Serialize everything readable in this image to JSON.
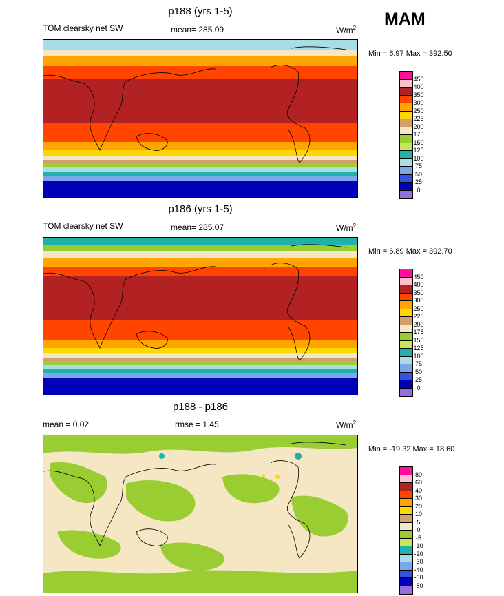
{
  "season": "MAM",
  "panels": [
    {
      "title": "p188 (yrs 1-5)",
      "left_label": "TOM clearsky net SW",
      "center_label": "mean= 285.09",
      "units": "W/m",
      "units_sup": "2",
      "minmax": "Min =   6.97 Max = 392.50",
      "levels": [
        "450",
        "400",
        "350",
        "300",
        "250",
        "225",
        "200",
        "175",
        "150",
        "125",
        "100",
        "75",
        "50",
        "25",
        "0"
      ],
      "colors": [
        "#ff0f9a",
        "#ffc0cb",
        "#b22222",
        "#ff4500",
        "#ffa500",
        "#ffd700",
        "#d2a06e",
        "#f5e6c4",
        "#9acd32",
        "#c8e65a",
        "#20b2aa",
        "#a8dde8",
        "#7ba7e8",
        "#3355dd",
        "#0000b8",
        "#9370db"
      ]
    },
    {
      "title": "p186 (yrs 1-5)",
      "left_label": "TOM clearsky net SW",
      "center_label": "mean= 285.07",
      "units": "W/m",
      "units_sup": "2",
      "minmax": "Min =   6.89 Max = 392.70",
      "levels": [
        "450",
        "400",
        "350",
        "300",
        "250",
        "225",
        "200",
        "175",
        "150",
        "125",
        "100",
        "75",
        "50",
        "25",
        "0"
      ],
      "colors": [
        "#ff0f9a",
        "#ffc0cb",
        "#b22222",
        "#ff4500",
        "#ffa500",
        "#ffd700",
        "#d2a06e",
        "#f5e6c4",
        "#9acd32",
        "#c8e65a",
        "#20b2aa",
        "#a8dde8",
        "#7ba7e8",
        "#3355dd",
        "#0000b8",
        "#9370db"
      ]
    },
    {
      "title": "p188 - p186",
      "left_label": "mean =   0.02",
      "center_label": "rmse =   1.45",
      "units": "W/m",
      "units_sup": "2",
      "minmax": "Min = -19.32 Max =  18.60",
      "levels": [
        "80",
        "60",
        "40",
        "30",
        "20",
        "10",
        "5",
        "0",
        "-5",
        "-10",
        "-20",
        "-30",
        "-40",
        "-60",
        "-80"
      ],
      "colors": [
        "#ff0f9a",
        "#ffc0cb",
        "#b22222",
        "#ff4500",
        "#ffa500",
        "#ffd700",
        "#d2a06e",
        "#f5e6c4",
        "#9acd32",
        "#c8e65a",
        "#20b2aa",
        "#a8dde8",
        "#7ba7e8",
        "#3355dd",
        "#0000b8",
        "#9370db"
      ]
    }
  ],
  "chart_data": [
    {
      "type": "heatmap",
      "title": "p188 (yrs 1-5)",
      "subtitle": "TOM clearsky net SW",
      "mean": 285.09,
      "min": 6.97,
      "max": 392.5,
      "units": "W/m2",
      "contour_levels": [
        0,
        25,
        50,
        75,
        100,
        125,
        150,
        175,
        200,
        225,
        250,
        300,
        350,
        400,
        450
      ]
    },
    {
      "type": "heatmap",
      "title": "p186 (yrs 1-5)",
      "subtitle": "TOM clearsky net SW",
      "mean": 285.07,
      "min": 6.89,
      "max": 392.7,
      "units": "W/m2",
      "contour_levels": [
        0,
        25,
        50,
        75,
        100,
        125,
        150,
        175,
        200,
        225,
        250,
        300,
        350,
        400,
        450
      ]
    },
    {
      "type": "heatmap",
      "title": "p188 - p186",
      "mean": 0.02,
      "rmse": 1.45,
      "min": -19.32,
      "max": 18.6,
      "units": "W/m2",
      "contour_levels": [
        -80,
        -60,
        -40,
        -30,
        -20,
        -10,
        -5,
        0,
        5,
        10,
        20,
        30,
        40,
        60,
        80
      ]
    }
  ]
}
